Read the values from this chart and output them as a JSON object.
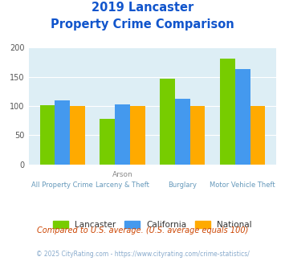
{
  "title_line1": "2019 Lancaster",
  "title_line2": "Property Crime Comparison",
  "cat_labels_top": [
    "",
    "Arson",
    "",
    ""
  ],
  "cat_labels_bot": [
    "All Property Crime",
    "Larceny & Theft",
    "Burglary",
    "Motor Vehicle Theft"
  ],
  "lancaster": [
    101,
    78,
    147,
    181
  ],
  "california": [
    110,
    103,
    113,
    163
  ],
  "national": [
    100,
    100,
    100,
    100
  ],
  "lancaster_color": "#77cc00",
  "california_color": "#4499ee",
  "national_color": "#ffaa00",
  "ylim": [
    0,
    200
  ],
  "yticks": [
    0,
    50,
    100,
    150,
    200
  ],
  "background_color": "#ddeef5",
  "title_color": "#1155cc",
  "xlabel_color_top": "#888888",
  "xlabel_color_bot": "#6699bb",
  "legend_labels": [
    "Lancaster",
    "California",
    "National"
  ],
  "footnote1": "Compared to U.S. average. (U.S. average equals 100)",
  "footnote2": "© 2025 CityRating.com - https://www.cityrating.com/crime-statistics/",
  "footnote1_color": "#cc4400",
  "footnote2_color": "#88aacc"
}
